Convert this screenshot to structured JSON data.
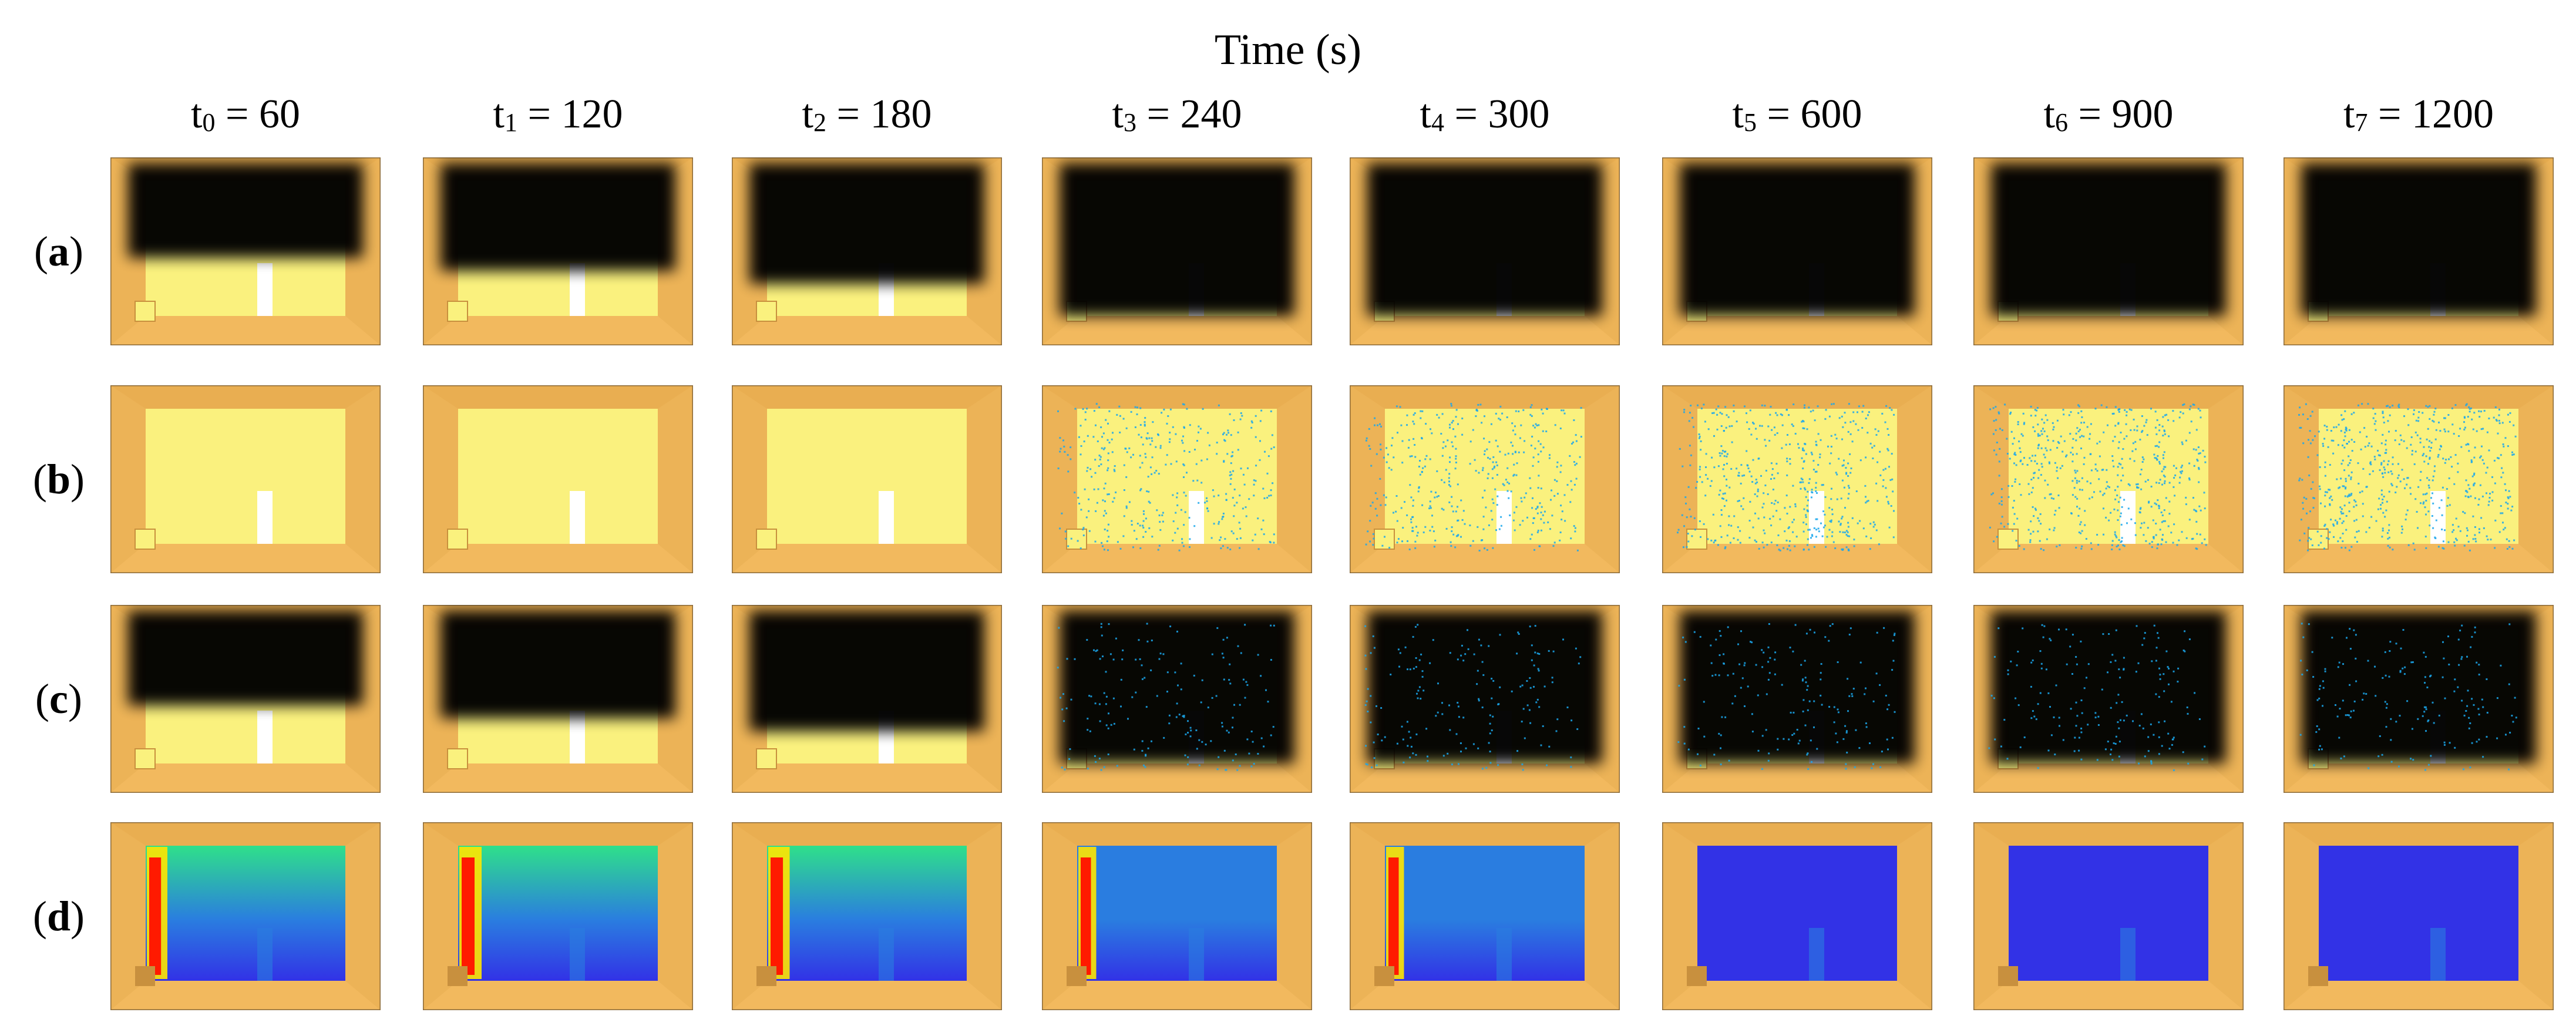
{
  "figure": {
    "axis_title": "Time (s)",
    "time_columns": [
      {
        "symbol": "t",
        "sub": "0",
        "value_text": " = 60",
        "seconds": 60
      },
      {
        "symbol": "t",
        "sub": "1",
        "value_text": " = 120",
        "seconds": 120
      },
      {
        "symbol": "t",
        "sub": "2",
        "value_text": " = 180",
        "seconds": 180
      },
      {
        "symbol": "t",
        "sub": "3",
        "value_text": " = 240",
        "seconds": 240
      },
      {
        "symbol": "t",
        "sub": "4",
        "value_text": " = 300",
        "seconds": 300
      },
      {
        "symbol": "t",
        "sub": "5",
        "value_text": " = 600",
        "seconds": 600
      },
      {
        "symbol": "t",
        "sub": "6",
        "value_text": " = 900",
        "seconds": 900
      },
      {
        "symbol": "t",
        "sub": "7",
        "value_text": " = 1200",
        "seconds": 1200
      }
    ],
    "rows": [
      {
        "open": "(",
        "letter": "a",
        "close": ")",
        "render": "smoke",
        "smoke_level": [
          0.55,
          0.65,
          0.75,
          1.0,
          1.0,
          1.0,
          1.0,
          1.0
        ]
      },
      {
        "open": "(",
        "letter": "b",
        "close": ")",
        "render": "sprinkler",
        "spray_density": [
          0,
          0,
          0,
          0.55,
          0.6,
          0.75,
          0.8,
          0.85
        ]
      },
      {
        "open": "(",
        "letter": "c",
        "close": ")",
        "render": "smoke_and_spray",
        "smoke_level": [
          0.55,
          0.65,
          0.75,
          1.0,
          1.0,
          1.0,
          1.0,
          1.0
        ]
      },
      {
        "open": "(",
        "letter": "d",
        "close": ")",
        "render": "temperature",
        "heat_level": [
          0.9,
          1.0,
          0.95,
          0.75,
          0.75,
          0,
          0,
          0
        ]
      }
    ],
    "colors": {
      "room_wall": "#f2b95e",
      "room_wall_dark": "#d99a3a",
      "fire_zone": "#faf17e",
      "door": "#ffffff",
      "smoke": "#000000",
      "spray": "#1aa7ec",
      "cold": "#3232e6",
      "cool": "#2a7de0",
      "warm": "#2fe08a",
      "hot": "#ffe600",
      "fire": "#ff1a00",
      "burner": "#c8903e"
    }
  }
}
